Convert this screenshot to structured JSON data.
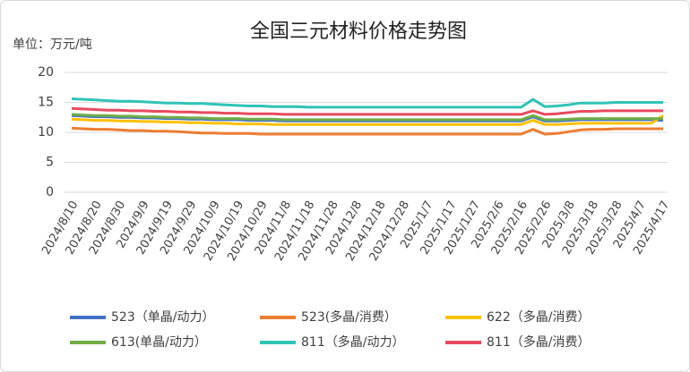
{
  "chart_data": {
    "type": "line",
    "title": "全国三元材料价格走势图",
    "unit_label": "单位：万元/吨",
    "categories": [
      "2024/8/10",
      null,
      "2024/8/20",
      null,
      "2024/8/30",
      null,
      "2024/9/9",
      null,
      "2024/9/19",
      null,
      "2024/9/29",
      null,
      "2024/10/9",
      null,
      "2024/10/19",
      null,
      "2024/10/29",
      null,
      "2024/11/8",
      null,
      "2024/11/18",
      null,
      "2024/11/28",
      null,
      "2024/12/8",
      null,
      "2024/12/18",
      null,
      "2024/12/28",
      null,
      "2025/1/7",
      null,
      "2025/1/17",
      null,
      "2025/1/27",
      null,
      "2025/2/6",
      null,
      "2025/2/16",
      null,
      "2025/2/26",
      null,
      "2025/3/8",
      null,
      "2025/3/18",
      null,
      "2025/3/28",
      null,
      "2025/4/7",
      null,
      "2025/4/17"
    ],
    "ylim": [
      0,
      20
    ],
    "yticks": [
      0,
      5,
      10,
      15,
      20
    ],
    "grid": true,
    "series": [
      {
        "name": "523（单晶/动力）",
        "color": "#4472c4",
        "values": [
          12.8,
          12.7,
          12.6,
          12.6,
          12.5,
          12.5,
          12.4,
          12.4,
          12.3,
          12.3,
          12.2,
          12.2,
          12.1,
          12.1,
          12.1,
          12.0,
          12.0,
          12.0,
          11.9,
          11.9,
          11.9,
          11.9,
          11.9,
          11.9,
          11.9,
          11.9,
          11.9,
          11.9,
          11.9,
          11.9,
          11.9,
          11.9,
          11.9,
          11.9,
          11.9,
          11.9,
          11.9,
          11.9,
          11.9,
          12.6,
          11.9,
          11.9,
          12.0,
          12.1,
          12.1,
          12.1,
          12.1,
          12.1,
          12.1,
          12.1,
          12.0
        ]
      },
      {
        "name": "523(多晶/消费）",
        "color": "#ed7d31",
        "values": [
          10.7,
          10.6,
          10.5,
          10.5,
          10.4,
          10.3,
          10.3,
          10.2,
          10.2,
          10.1,
          10.0,
          9.9,
          9.9,
          9.8,
          9.8,
          9.8,
          9.7,
          9.7,
          9.7,
          9.7,
          9.7,
          9.7,
          9.7,
          9.7,
          9.7,
          9.7,
          9.7,
          9.7,
          9.7,
          9.7,
          9.7,
          9.7,
          9.7,
          9.7,
          9.7,
          9.7,
          9.7,
          9.7,
          9.7,
          10.5,
          9.7,
          9.8,
          10.1,
          10.4,
          10.5,
          10.5,
          10.6,
          10.6,
          10.6,
          10.6,
          10.6
        ]
      },
      {
        "name": "622（多晶/消费）",
        "color": "#ffc000",
        "values": [
          12.2,
          12.1,
          12.0,
          12.0,
          11.9,
          11.9,
          11.8,
          11.8,
          11.7,
          11.7,
          11.6,
          11.6,
          11.5,
          11.5,
          11.4,
          11.4,
          11.4,
          11.3,
          11.3,
          11.3,
          11.3,
          11.3,
          11.3,
          11.3,
          11.3,
          11.3,
          11.3,
          11.3,
          11.3,
          11.3,
          11.3,
          11.3,
          11.3,
          11.3,
          11.3,
          11.3,
          11.3,
          11.3,
          11.3,
          12.0,
          11.3,
          11.3,
          11.4,
          11.5,
          11.5,
          11.5,
          11.5,
          11.5,
          11.5,
          11.5,
          12.8
        ]
      },
      {
        "name": "613(单晶/动力）",
        "color": "#70ad47",
        "values": [
          13.0,
          12.9,
          12.8,
          12.8,
          12.7,
          12.7,
          12.6,
          12.6,
          12.5,
          12.5,
          12.4,
          12.4,
          12.3,
          12.3,
          12.3,
          12.2,
          12.2,
          12.2,
          12.1,
          12.1,
          12.1,
          12.1,
          12.1,
          12.1,
          12.1,
          12.1,
          12.1,
          12.1,
          12.1,
          12.1,
          12.1,
          12.1,
          12.1,
          12.1,
          12.1,
          12.1,
          12.1,
          12.1,
          12.1,
          12.8,
          12.1,
          12.1,
          12.2,
          12.3,
          12.3,
          12.3,
          12.3,
          12.3,
          12.3,
          12.3,
          12.3
        ]
      },
      {
        "name": "811（多晶/动力）",
        "color": "#2ec4b6",
        "values": [
          15.6,
          15.5,
          15.4,
          15.3,
          15.2,
          15.2,
          15.1,
          15.0,
          14.9,
          14.9,
          14.8,
          14.8,
          14.7,
          14.6,
          14.5,
          14.4,
          14.4,
          14.3,
          14.3,
          14.3,
          14.2,
          14.2,
          14.2,
          14.2,
          14.2,
          14.2,
          14.2,
          14.2,
          14.2,
          14.2,
          14.2,
          14.2,
          14.2,
          14.2,
          14.2,
          14.2,
          14.2,
          14.2,
          14.2,
          15.5,
          14.3,
          14.4,
          14.6,
          14.9,
          14.9,
          14.9,
          15.0,
          15.0,
          15.0,
          15.0,
          15.0
        ]
      },
      {
        "name": "811（多晶/消费）",
        "color": "#e84a5f",
        "values": [
          14.0,
          13.9,
          13.8,
          13.7,
          13.7,
          13.6,
          13.6,
          13.5,
          13.5,
          13.4,
          13.4,
          13.3,
          13.3,
          13.2,
          13.2,
          13.1,
          13.1,
          13.1,
          13.0,
          13.0,
          13.0,
          13.0,
          13.0,
          13.0,
          13.0,
          13.0,
          13.0,
          13.0,
          13.0,
          13.0,
          13.0,
          13.0,
          13.0,
          13.0,
          13.0,
          13.0,
          13.0,
          13.0,
          13.0,
          13.6,
          13.0,
          13.1,
          13.3,
          13.5,
          13.5,
          13.6,
          13.6,
          13.6,
          13.6,
          13.6,
          13.6
        ]
      }
    ]
  }
}
